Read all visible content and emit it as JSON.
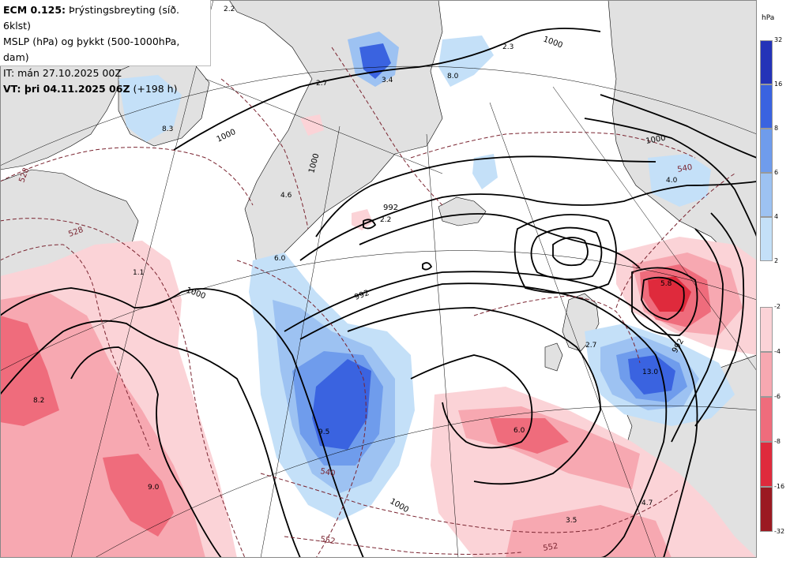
{
  "header": {
    "line1_bold": "ECM 0.125:",
    "line1_rest": "Þrýstingsbreyting (síð. 6klst)",
    "line2": "MSLP (hPa) og þykkt (500-1000hPa, dam)",
    "line3": "IT: mán 27.10.2025 00Z",
    "line4_bold": "VT: þri 04.11.2025 06Z",
    "line4_rest": "(+198 h)"
  },
  "legend": {
    "unit": "hPa",
    "rise": {
      "ticks": [
        "32",
        "16",
        "8",
        "6",
        "4",
        "2"
      ],
      "colors": [
        "#2433b8",
        "#3a63e0",
        "#6f9cec",
        "#9dc2f2",
        "#c4e0f8"
      ]
    },
    "fall": {
      "ticks": [
        "-2",
        "-4",
        "-6",
        "-8",
        "-16",
        "-32"
      ],
      "colors": [
        "#fbd3d7",
        "#f7a8b1",
        "#ef6c7c",
        "#df2a3c",
        "#9b1a22"
      ]
    }
  },
  "labels": {
    "isobars": [
      "1000",
      "1000",
      "1000",
      "1000",
      "992",
      "992",
      "992",
      "1000",
      "1000"
    ],
    "thickness": [
      "528",
      "528",
      "540",
      "540",
      "552",
      "552"
    ],
    "tendency": [
      "2.2",
      "8.3",
      "2.7",
      "3.4",
      "8.0",
      "2.3",
      "4.0",
      "2.2",
      "4.6",
      "6.0",
      "1.1",
      "8.2",
      "9.0",
      "9.5",
      "6.0",
      "13.0",
      "2.7",
      "5.8",
      "4.7",
      "3.5"
    ]
  }
}
